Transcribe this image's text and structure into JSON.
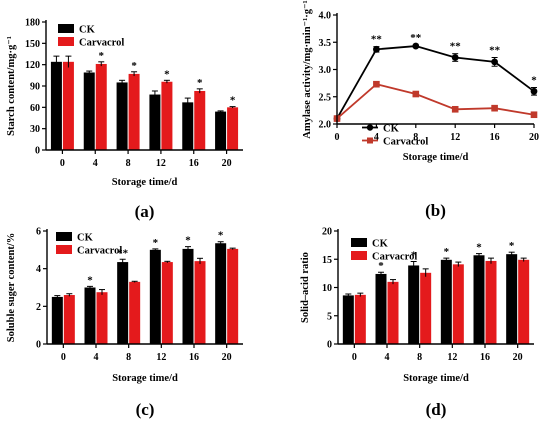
{
  "colors": {
    "ck": "#000000",
    "carvacrol": "#e41a1c",
    "carvacrol_line": "#c0392b",
    "axis": "#000000"
  },
  "chart_data": [
    {
      "id": "a",
      "type": "bar",
      "panel_label": "(a)",
      "xlabel": "Storage time/d",
      "ylabel": "Starch content/mg·g⁻¹",
      "categories": [
        "0",
        "4",
        "8",
        "12",
        "16",
        "20"
      ],
      "ylim": [
        0,
        180
      ],
      "yticks": [
        "0",
        "30",
        "60",
        "90",
        "120",
        "150",
        "180"
      ],
      "legend_position": "top-left",
      "series": [
        {
          "name": "CK",
          "values": [
            124,
            109,
            95,
            78,
            67,
            54
          ],
          "errors": [
            8,
            2,
            3,
            5,
            6,
            1
          ]
        },
        {
          "name": "Carvacrol",
          "values": [
            124,
            121,
            107,
            96,
            83,
            60
          ],
          "errors": [
            8,
            3,
            3,
            2,
            3,
            1
          ]
        }
      ],
      "annotations": [
        "",
        "*",
        "*",
        "*",
        "*",
        "*"
      ]
    },
    {
      "id": "b",
      "type": "line",
      "panel_label": "(b)",
      "xlabel": "Storage time/d",
      "ylabel": "Amylase activity/mg·min⁻¹·g⁻¹",
      "x": [
        0,
        4,
        8,
        12,
        16,
        20
      ],
      "xticks": [
        "0",
        "4",
        "8",
        "12",
        "16",
        "20"
      ],
      "xlim": [
        0,
        20
      ],
      "ylim": [
        2.0,
        4.0
      ],
      "yticks": [
        "2.0",
        "2.5",
        "3.0",
        "3.5",
        "4.0"
      ],
      "legend_position": "center-right",
      "series": [
        {
          "name": "CK",
          "values": [
            2.1,
            3.37,
            3.43,
            3.22,
            3.14,
            2.6
          ],
          "errors": [
            0.04,
            0.05,
            0.02,
            0.07,
            0.08,
            0.07
          ]
        },
        {
          "name": "Carvacrol",
          "values": [
            2.1,
            2.73,
            2.55,
            2.27,
            2.29,
            2.17
          ],
          "errors": [
            0.04,
            0.04,
            0.02,
            0.02,
            0.05,
            0.05
          ]
        }
      ],
      "annotations": [
        "",
        "**",
        "**",
        "**",
        "**",
        "*"
      ]
    },
    {
      "id": "c",
      "type": "bar",
      "panel_label": "(c)",
      "xlabel": "Storage time/d",
      "ylabel": "Soluble suger content/%",
      "categories": [
        "0",
        "4",
        "8",
        "12",
        "16",
        "20"
      ],
      "ylim": [
        0,
        6
      ],
      "yticks": [
        "0",
        "2",
        "4",
        "6"
      ],
      "legend_position": "top-left",
      "series": [
        {
          "name": "CK",
          "values": [
            2.5,
            3.0,
            4.35,
            5.0,
            5.05,
            5.35
          ],
          "errors": [
            0.07,
            0.06,
            0.15,
            0.05,
            0.12,
            0.08
          ]
        },
        {
          "name": "Carvacrol",
          "values": [
            2.6,
            2.75,
            3.3,
            4.35,
            4.4,
            5.05
          ],
          "errors": [
            0.07,
            0.14,
            0.03,
            0.04,
            0.15,
            0.04
          ]
        }
      ],
      "annotations": [
        "",
        "*",
        "**",
        "*",
        "*",
        "*"
      ]
    },
    {
      "id": "d",
      "type": "bar",
      "panel_label": "(d)",
      "xlabel": "Storage time/d",
      "ylabel": "Solid–acid ratio",
      "categories": [
        "0",
        "4",
        "8",
        "12",
        "16",
        "20"
      ],
      "ylim": [
        0,
        20
      ],
      "yticks": [
        "0",
        "5",
        "10",
        "15",
        "20"
      ],
      "legend_position": "top-left",
      "series": [
        {
          "name": "CK",
          "values": [
            8.6,
            12.4,
            13.9,
            14.9,
            15.7,
            15.9
          ],
          "errors": [
            0.25,
            0.3,
            0.7,
            0.3,
            0.3,
            0.35
          ]
        },
        {
          "name": "Carvacrol",
          "values": [
            8.7,
            11.0,
            12.6,
            14.1,
            14.7,
            14.9
          ],
          "errors": [
            0.3,
            0.4,
            0.7,
            0.4,
            0.5,
            0.3
          ]
        }
      ],
      "annotations": [
        "",
        "*",
        "*",
        "*",
        "*",
        "*"
      ]
    }
  ]
}
